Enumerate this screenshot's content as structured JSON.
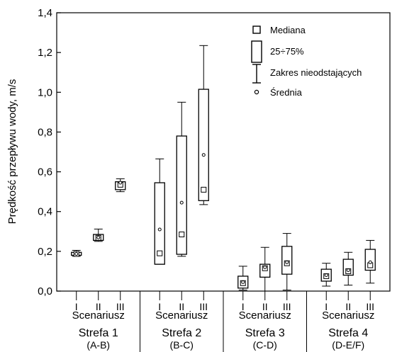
{
  "chart_data": {
    "type": "boxplot",
    "ylabel": "Prędkość przepływu wody, m/s",
    "ylim": [
      0,
      1.4
    ],
    "yticks": [
      "0,0",
      "0,2",
      "0,4",
      "0,6",
      "0,8",
      "1,0",
      "1,2",
      "1,4"
    ],
    "ytick_values": [
      0,
      0.2,
      0.4,
      0.6,
      0.8,
      1.0,
      1.2,
      1.4
    ],
    "grid": false,
    "legend_position": "top-right",
    "legend": {
      "median": "Mediana",
      "box": "25÷75%",
      "whisker": "Zakres nieodstających",
      "mean": "Średnia"
    },
    "scenario_label": "Scenariusz",
    "groups": [
      {
        "name": "Strefa 1",
        "sub": "(A-B)",
        "scenarios": [
          {
            "label": "I",
            "min": 0.175,
            "q1": 0.18,
            "median": 0.187,
            "q3": 0.195,
            "max": 0.205,
            "mean": 0.187
          },
          {
            "label": "II",
            "min": 0.25,
            "q1": 0.255,
            "median": 0.268,
            "q3": 0.285,
            "max": 0.312,
            "mean": 0.27
          },
          {
            "label": "III",
            "min": 0.5,
            "q1": 0.51,
            "median": 0.535,
            "q3": 0.55,
            "max": 0.565,
            "mean": 0.545
          }
        ]
      },
      {
        "name": "Strefa 2",
        "sub": "(B-C)",
        "scenarios": [
          {
            "label": "I",
            "min": 0.135,
            "q1": 0.135,
            "median": 0.19,
            "q3": 0.545,
            "max": 0.665,
            "mean": 0.31
          },
          {
            "label": "II",
            "min": 0.175,
            "q1": 0.185,
            "median": 0.285,
            "q3": 0.78,
            "max": 0.95,
            "mean": 0.445
          },
          {
            "label": "III",
            "min": 0.435,
            "q1": 0.455,
            "median": 0.51,
            "q3": 1.015,
            "max": 1.235,
            "mean": 0.685
          }
        ]
      },
      {
        "name": "Strefa 3",
        "sub": "(C-D)",
        "scenarios": [
          {
            "label": "I",
            "min": 0.005,
            "q1": 0.015,
            "median": 0.04,
            "q3": 0.075,
            "max": 0.125,
            "mean": 0.045
          },
          {
            "label": "II",
            "min": 0.0,
            "q1": 0.07,
            "median": 0.115,
            "q3": 0.135,
            "max": 0.22,
            "mean": 0.12
          },
          {
            "label": "III",
            "min": 0.005,
            "q1": 0.085,
            "median": 0.14,
            "q3": 0.225,
            "max": 0.29,
            "mean": 0.145
          }
        ]
      },
      {
        "name": "Strefa 4",
        "sub": "(D-E/F)",
        "scenarios": [
          {
            "label": "I",
            "min": 0.025,
            "q1": 0.05,
            "median": 0.075,
            "q3": 0.11,
            "max": 0.14,
            "mean": 0.08
          },
          {
            "label": "II",
            "min": 0.03,
            "q1": 0.08,
            "median": 0.1,
            "q3": 0.16,
            "max": 0.195,
            "mean": 0.105
          },
          {
            "label": "III",
            "min": 0.04,
            "q1": 0.105,
            "median": 0.13,
            "q3": 0.21,
            "max": 0.255,
            "mean": 0.145
          }
        ]
      }
    ]
  }
}
